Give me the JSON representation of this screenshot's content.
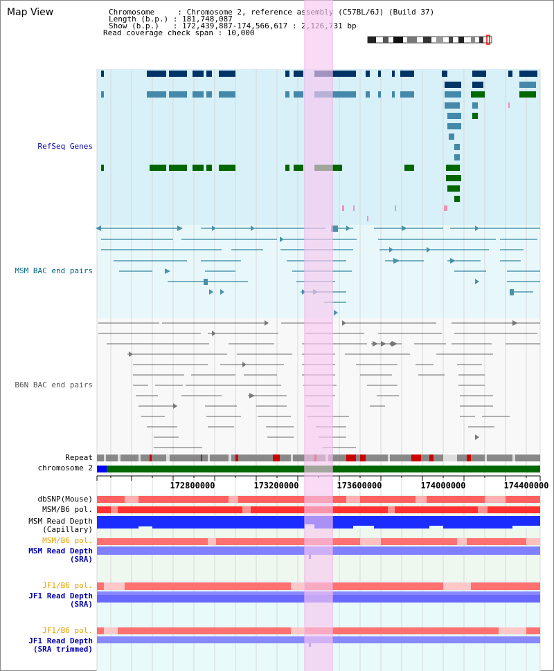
{
  "header": {
    "view_title": "Map View",
    "info_lines": [
      "Chromosome     : Chromosome 2, reference assembly (C57BL/6J) (Build 37)",
      "Length (b.p.) : 181,748,087",
      "Show (b.p.)   : 172,439,887-174,566,617 : 2,126,731 bp",
      "Read coverage check span : 10,000"
    ]
  },
  "tracks": {
    "refseq": {
      "label": "RefSeq Genes",
      "color": "#0000aa"
    },
    "msm_bac": {
      "label": "MSM BAC end pairs",
      "color": "#006688"
    },
    "b6n_bac": {
      "label": "B6N BAC end pairs",
      "color": "#555555"
    },
    "repeat": {
      "label": "Repeat"
    },
    "chromosome": {
      "label": "chromosome 2"
    },
    "dbsnp": {
      "label": "dbSNP(Mouse)",
      "color": "#000000"
    },
    "msm_b6_pol_1": {
      "label": "MSM/B6 pol.",
      "color": "#000000"
    },
    "msm_read_depth_cap": {
      "label1": "MSM Read Depth",
      "label2": "(Capillary)",
      "color": "#000000"
    },
    "msm_b6_pol_2": {
      "label": "MSM/B6 pol.",
      "color": "#e8a000"
    },
    "msm_read_depth_sra": {
      "label1": "MSM Read Depth",
      "label2": "(SRA)",
      "color": "#0000aa"
    },
    "jf1_b6_pol_1": {
      "label": "JF1/B6 pol.",
      "color": "#e8a000"
    },
    "jf1_read_depth_sra": {
      "label1": "JF1 Read Depth",
      "label2": "(SRA)",
      "color": "#0000aa"
    },
    "jf1_b6_pol_2": {
      "label": "JF1/B6 pol.",
      "color": "#e8a000"
    },
    "jf1_read_depth_trim": {
      "label1": "JF1 Read Depth",
      "label2": "(SRA trimmed)",
      "color": "#0000aa"
    }
  },
  "axis": {
    "ticks": [
      "172800000",
      "173200000",
      "173600000",
      "174000000",
      "174400000"
    ]
  },
  "colors": {
    "highlight": "#f8c8f0",
    "refseq_bg": "#d8f0f8",
    "msm_bg": "#e8f8fa",
    "b6n_bg": "#f8f8f8",
    "chrom_green": "#006600",
    "chrom_blue": "#0000ff",
    "gene_dark": "#003366",
    "gene_mid": "#4488aa",
    "gene_green": "#006600",
    "pink": "#f080b0",
    "depth_blue": "#1a2cff",
    "depth_light": "#8080ff",
    "snp_red": "#ff5555"
  }
}
